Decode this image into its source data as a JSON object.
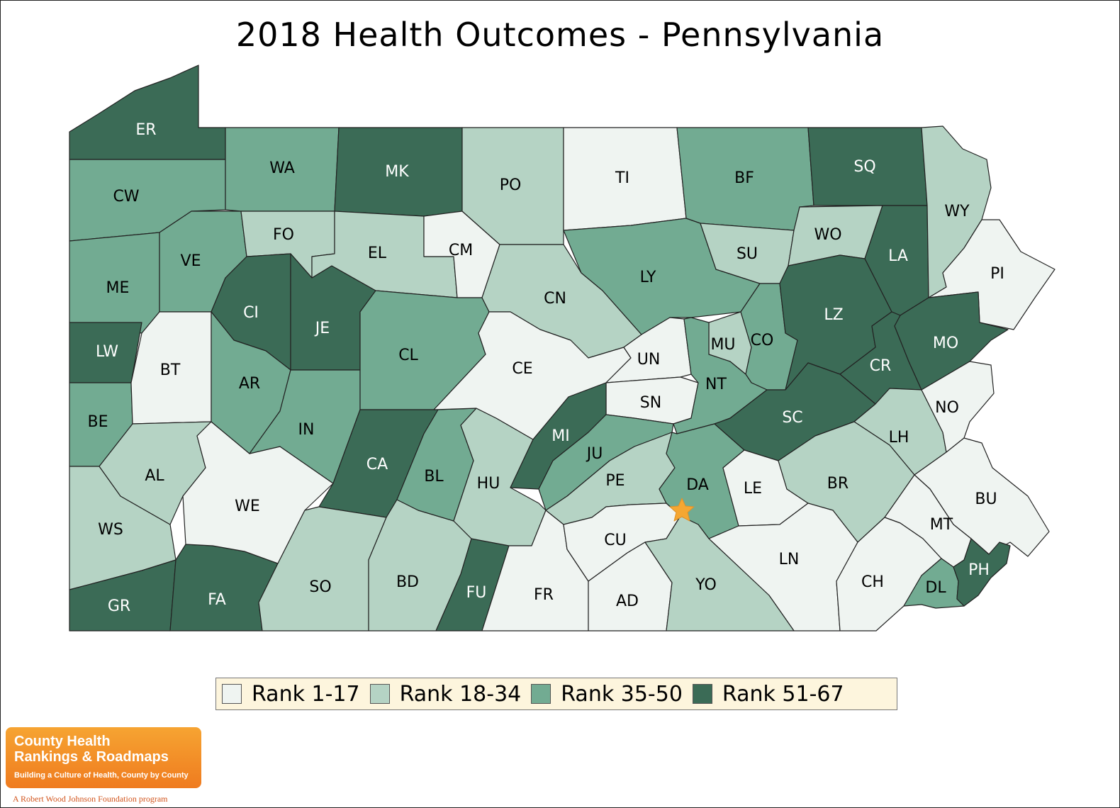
{
  "title": "2018 Health Outcomes - Pennsylvania",
  "colors": {
    "rank_1_17": "#eff4f1",
    "rank_18_34": "#b5d3c4",
    "rank_35_50": "#72ab92",
    "rank_51_67": "#3b6b56",
    "capital_star": "#f5a732"
  },
  "legend": [
    {
      "label": "Rank 1-17",
      "color_key": "rank_1_17"
    },
    {
      "label": "Rank 18-34",
      "color_key": "rank_18_34"
    },
    {
      "label": "Rank 35-50",
      "color_key": "rank_35_50"
    },
    {
      "label": "Rank 51-67",
      "color_key": "rank_51_67"
    }
  ],
  "counties": [
    {
      "code": "ER",
      "rank_group": "Rank 51-67"
    },
    {
      "code": "WA",
      "rank_group": "Rank 35-50"
    },
    {
      "code": "MK",
      "rank_group": "Rank 51-67"
    },
    {
      "code": "PO",
      "rank_group": "Rank 18-34"
    },
    {
      "code": "TI",
      "rank_group": "Rank 1-17"
    },
    {
      "code": "BF",
      "rank_group": "Rank 35-50"
    },
    {
      "code": "SQ",
      "rank_group": "Rank 51-67"
    },
    {
      "code": "WY",
      "rank_group": "Rank 18-34"
    },
    {
      "code": "CW",
      "rank_group": "Rank 35-50"
    },
    {
      "code": "FO",
      "rank_group": "Rank 18-34"
    },
    {
      "code": "EL",
      "rank_group": "Rank 18-34"
    },
    {
      "code": "CM",
      "rank_group": "Rank 1-17"
    },
    {
      "code": "SU",
      "rank_group": "Rank 18-34"
    },
    {
      "code": "WO",
      "rank_group": "Rank 18-34"
    },
    {
      "code": "LA",
      "rank_group": "Rank 51-67"
    },
    {
      "code": "PI",
      "rank_group": "Rank 1-17"
    },
    {
      "code": "ME",
      "rank_group": "Rank 35-50"
    },
    {
      "code": "VE",
      "rank_group": "Rank 35-50"
    },
    {
      "code": "CI",
      "rank_group": "Rank 51-67"
    },
    {
      "code": "JE",
      "rank_group": "Rank 51-67"
    },
    {
      "code": "CN",
      "rank_group": "Rank 18-34"
    },
    {
      "code": "LY",
      "rank_group": "Rank 35-50"
    },
    {
      "code": "LZ",
      "rank_group": "Rank 51-67"
    },
    {
      "code": "MO",
      "rank_group": "Rank 51-67"
    },
    {
      "code": "LW",
      "rank_group": "Rank 51-67"
    },
    {
      "code": "BT",
      "rank_group": "Rank 1-17"
    },
    {
      "code": "CL",
      "rank_group": "Rank 35-50"
    },
    {
      "code": "CE",
      "rank_group": "Rank 1-17"
    },
    {
      "code": "UN",
      "rank_group": "Rank 1-17"
    },
    {
      "code": "MU",
      "rank_group": "Rank 18-34"
    },
    {
      "code": "CO",
      "rank_group": "Rank 35-50"
    },
    {
      "code": "CR",
      "rank_group": "Rank 51-67"
    },
    {
      "code": "AR",
      "rank_group": "Rank 35-50"
    },
    {
      "code": "NT",
      "rank_group": "Rank 35-50"
    },
    {
      "code": "SN",
      "rank_group": "Rank 1-17"
    },
    {
      "code": "BE",
      "rank_group": "Rank 35-50"
    },
    {
      "code": "IN",
      "rank_group": "Rank 35-50"
    },
    {
      "code": "SC",
      "rank_group": "Rank 51-67"
    },
    {
      "code": "NO",
      "rank_group": "Rank 1-17"
    },
    {
      "code": "MI",
      "rank_group": "Rank 51-67"
    },
    {
      "code": "LH",
      "rank_group": "Rank 18-34"
    },
    {
      "code": "CA",
      "rank_group": "Rank 51-67"
    },
    {
      "code": "JU",
      "rank_group": "Rank 35-50"
    },
    {
      "code": "AL",
      "rank_group": "Rank 18-34"
    },
    {
      "code": "BL",
      "rank_group": "Rank 35-50"
    },
    {
      "code": "HU",
      "rank_group": "Rank 18-34"
    },
    {
      "code": "PE",
      "rank_group": "Rank 18-34"
    },
    {
      "code": "DA",
      "rank_group": "Rank 35-50"
    },
    {
      "code": "LE",
      "rank_group": "Rank 1-17"
    },
    {
      "code": "BR",
      "rank_group": "Rank 18-34"
    },
    {
      "code": "BU",
      "rank_group": "Rank 1-17"
    },
    {
      "code": "WE",
      "rank_group": "Rank 1-17"
    },
    {
      "code": "WS",
      "rank_group": "Rank 18-34"
    },
    {
      "code": "MT",
      "rank_group": "Rank 1-17"
    },
    {
      "code": "CU",
      "rank_group": "Rank 1-17"
    },
    {
      "code": "LN",
      "rank_group": "Rank 1-17"
    },
    {
      "code": "PH",
      "rank_group": "Rank 51-67"
    },
    {
      "code": "SO",
      "rank_group": "Rank 18-34"
    },
    {
      "code": "BD",
      "rank_group": "Rank 18-34"
    },
    {
      "code": "FU",
      "rank_group": "Rank 51-67"
    },
    {
      "code": "FR",
      "rank_group": "Rank 1-17"
    },
    {
      "code": "AD",
      "rank_group": "Rank 1-17"
    },
    {
      "code": "YO",
      "rank_group": "Rank 18-34"
    },
    {
      "code": "CH",
      "rank_group": "Rank 1-17"
    },
    {
      "code": "DL",
      "rank_group": "Rank 35-50"
    },
    {
      "code": "GR",
      "rank_group": "Rank 51-67"
    },
    {
      "code": "FA",
      "rank_group": "Rank 51-67"
    }
  ],
  "logo": {
    "line1": "County Health",
    "line2": "Rankings & Roadmaps",
    "tagline": "Building a Culture of Health, County by County",
    "footer": "A Robert Wood Johnson Foundation program"
  }
}
